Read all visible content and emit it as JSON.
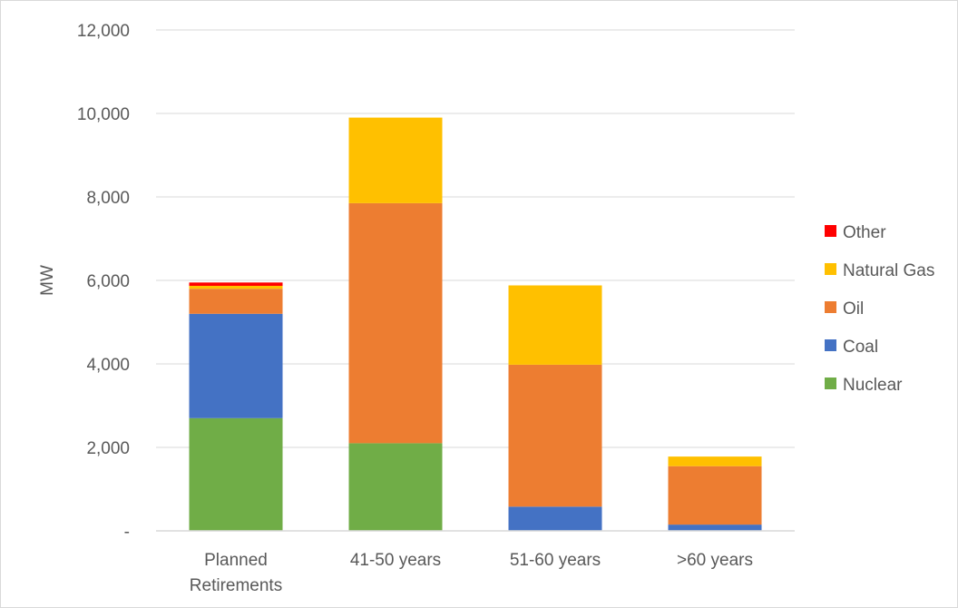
{
  "chart_data": {
    "type": "bar",
    "stacked": true,
    "title": "",
    "xlabel": "",
    "ylabel": "MW",
    "ylim": [
      0,
      12000
    ],
    "yticks": [
      0,
      2000,
      4000,
      6000,
      8000,
      10000,
      12000
    ],
    "ytick_labels": [
      "-",
      "2,000",
      "4,000",
      "6,000",
      "8,000",
      "10,000",
      "12,000"
    ],
    "grid": true,
    "legend_position": "right",
    "categories": [
      [
        "Planned",
        "Retirements"
      ],
      [
        "41-50 years"
      ],
      [
        "51-60 years"
      ],
      [
        ">60 years"
      ]
    ],
    "series": [
      {
        "name": "Nuclear",
        "color": "#70ad47",
        "values": [
          2700,
          2100,
          0,
          0
        ]
      },
      {
        "name": "Coal",
        "color": "#4472c4",
        "values": [
          2500,
          0,
          580,
          150
        ]
      },
      {
        "name": "Oil",
        "color": "#ed7d31",
        "values": [
          600,
          5750,
          3400,
          1400
        ]
      },
      {
        "name": "Natural Gas",
        "color": "#ffc000",
        "values": [
          70,
          2050,
          1900,
          230
        ]
      },
      {
        "name": "Other",
        "color": "#ff0000",
        "values": [
          80,
          0,
          0,
          0
        ]
      }
    ],
    "legend_order": [
      "Other",
      "Natural Gas",
      "Oil",
      "Coal",
      "Nuclear"
    ]
  }
}
